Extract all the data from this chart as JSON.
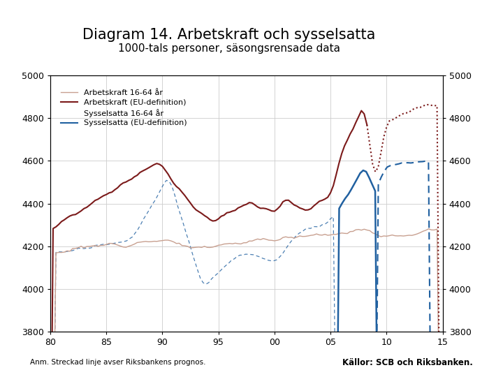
{
  "title": "Diagram 14. Arbetskraft och sysselsatta",
  "subtitle": "1000-tals personer, säsongsrensade data",
  "footnote_left": "Anm. Streckad linje avser Riksbankens prognos.",
  "footnote_right": "Källor: SCB och Riksbanken.",
  "xmin": 1980,
  "xmax": 2015,
  "ymin": 3800,
  "ymax": 5000,
  "yticks": [
    3800,
    4000,
    4200,
    4400,
    4600,
    4800,
    5000
  ],
  "xticks": [
    1980,
    1985,
    1990,
    1995,
    2000,
    2005,
    2010,
    2015
  ],
  "xlabels": [
    "80",
    "85",
    "90",
    "95",
    "00",
    "05",
    "10",
    "15"
  ],
  "legend_entries": [
    "Arbetskraft 16-64 år",
    "Arbetskraft (EU-definition)",
    "Sysselsatta 16-64 år",
    "Sysselsatta (EU-definition)"
  ],
  "color_ak1664": "#c8a090",
  "color_ak_eu": "#7b1a1a",
  "color_sys1664": "#b09878",
  "color_sys_eu": "#2060a0",
  "footer_bar_color": "#1a3a8a",
  "background_color": "#ffffff",
  "grid_color": "#cccccc",
  "title_fontsize": 15,
  "subtitle_fontsize": 11
}
